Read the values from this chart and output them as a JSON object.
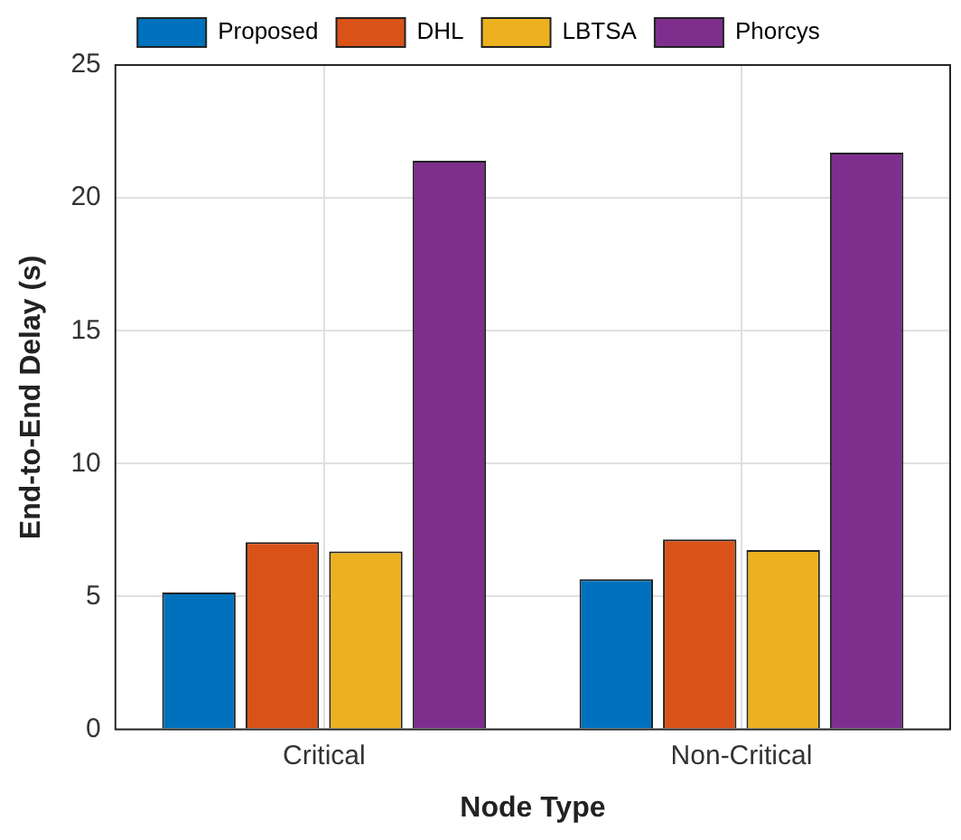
{
  "chart_data": {
    "type": "bar",
    "xlabel": "Node Type",
    "ylabel": "End-to-End Delay (s)",
    "categories": [
      "Critical",
      "Non-Critical"
    ],
    "series": [
      {
        "name": "Proposed",
        "color": "#0072bd",
        "values": [
          5.15,
          5.65
        ]
      },
      {
        "name": "DHL",
        "color": "#d95319",
        "values": [
          7.05,
          7.15
        ]
      },
      {
        "name": "LBTSA",
        "color": "#edb120",
        "values": [
          6.7,
          6.75
        ]
      },
      {
        "name": "Phorcys",
        "color": "#7e2f8e",
        "values": [
          21.4,
          21.7
        ]
      }
    ],
    "ylim": [
      0,
      25
    ],
    "yticks": [
      0,
      5,
      10,
      15,
      20,
      25
    ],
    "grid": true,
    "legend": "top"
  }
}
